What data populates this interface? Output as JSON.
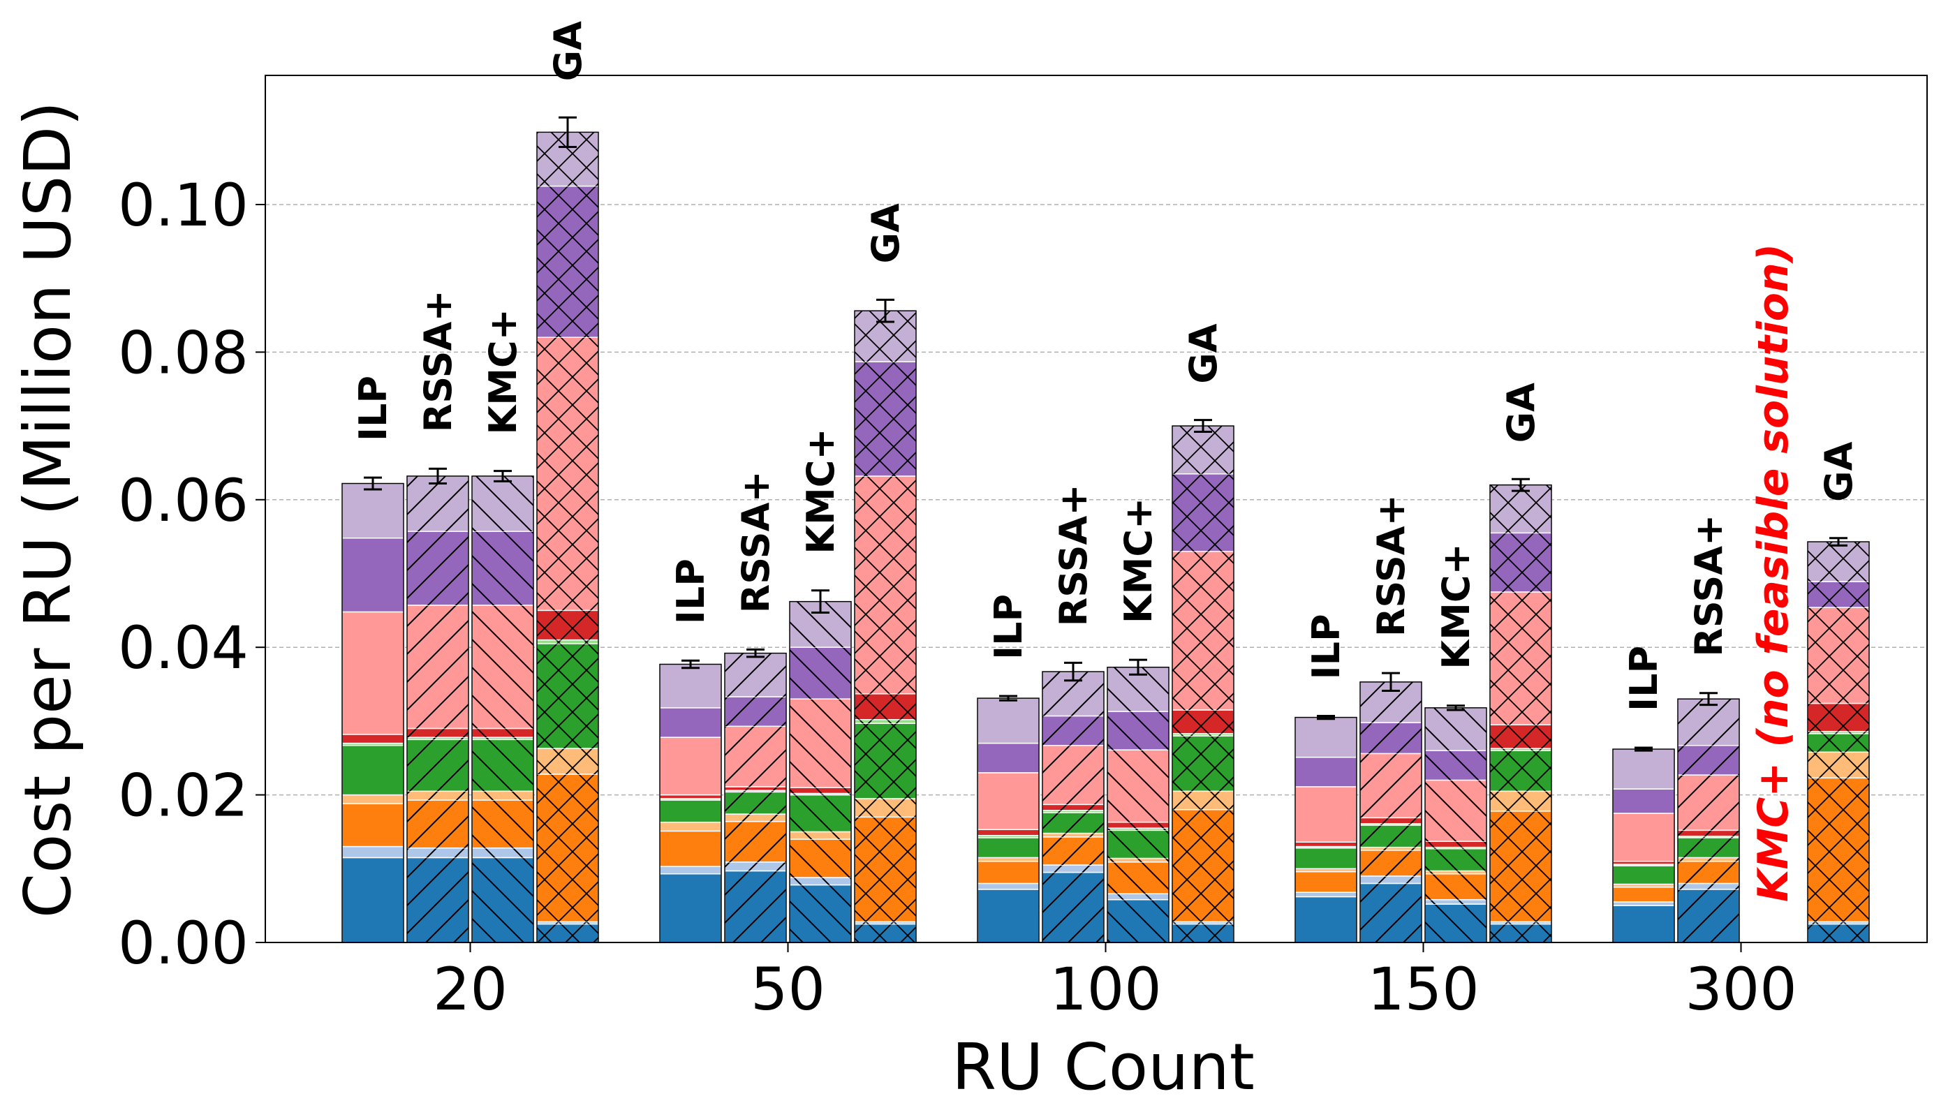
{
  "chart_data": {
    "type": "bar",
    "stacked": true,
    "title": "",
    "xlabel": "RU Count",
    "ylabel": "Cost per RU (Million USD)",
    "ylim": [
      0,
      0.1175
    ],
    "yticks": [
      "0.00",
      "0.02",
      "0.04",
      "0.06",
      "0.08",
      "0.10"
    ],
    "grid": "horizontal dashed",
    "categories": [
      "20",
      "50",
      "100",
      "150",
      "300"
    ],
    "algorithms": [
      "ILP",
      "RSSA+",
      "KMC+",
      "GA"
    ],
    "segment_colors": [
      "#1f77b4",
      "#aec7e8",
      "#ff7f0e",
      "#ffbb78",
      "#2ca02c",
      "#98df8a",
      "#d62728",
      "#ff9896",
      "#9467bd",
      "#c5b0d5"
    ],
    "algorithm_hatch": {
      "ILP": "none",
      "RSSA+": "diagonal",
      "KMC+": "backdiagonal",
      "GA": "cross"
    },
    "bars": [
      {
        "category": "20",
        "algorithm": "ILP",
        "label": "ILP",
        "total": 0.0622,
        "err": 0.0008,
        "segments": [
          0.0115,
          0.0015,
          0.0058,
          0.0012,
          0.0067,
          0.0003,
          0.0012,
          0.0166,
          0.01,
          0.0074
        ]
      },
      {
        "category": "20",
        "algorithm": "RSSA+",
        "label": "RSSA+",
        "total": 0.0632,
        "err": 0.001,
        "segments": [
          0.0115,
          0.0013,
          0.0065,
          0.0012,
          0.007,
          0.0003,
          0.0012,
          0.0167,
          0.01,
          0.0075
        ]
      },
      {
        "category": "20",
        "algorithm": "KMC+",
        "label": "KMC+",
        "total": 0.0632,
        "err": 0.0007,
        "segments": [
          0.0115,
          0.0013,
          0.0065,
          0.0012,
          0.007,
          0.0003,
          0.0012,
          0.0167,
          0.01,
          0.0075
        ]
      },
      {
        "category": "20",
        "algorithm": "GA",
        "label": "GA",
        "total": 0.1098,
        "err": 0.002,
        "segments": [
          0.0025,
          0.0003,
          0.02,
          0.0035,
          0.0142,
          0.0005,
          0.004,
          0.037,
          0.0205,
          0.0073
        ]
      },
      {
        "category": "50",
        "algorithm": "ILP",
        "label": "ILP",
        "total": 0.0377,
        "err": 0.0005,
        "segments": [
          0.0093,
          0.001,
          0.0048,
          0.0012,
          0.003,
          0.0002,
          0.0005,
          0.0078,
          0.004,
          0.0059
        ]
      },
      {
        "category": "50",
        "algorithm": "RSSA+",
        "label": "RSSA+",
        "total": 0.0392,
        "err": 0.0005,
        "segments": [
          0.0097,
          0.0012,
          0.0055,
          0.001,
          0.003,
          0.0002,
          0.0005,
          0.0082,
          0.004,
          0.0059
        ]
      },
      {
        "category": "50",
        "algorithm": "KMC+",
        "label": "KMC+",
        "total": 0.0462,
        "err": 0.0015,
        "segments": [
          0.0078,
          0.001,
          0.0052,
          0.001,
          0.005,
          0.0002,
          0.0008,
          0.012,
          0.007,
          0.0062
        ]
      },
      {
        "category": "50",
        "algorithm": "GA",
        "label": "GA",
        "total": 0.0856,
        "err": 0.0015,
        "segments": [
          0.0025,
          0.0003,
          0.0142,
          0.0025,
          0.0102,
          0.0005,
          0.0035,
          0.0295,
          0.0155,
          0.0069
        ]
      },
      {
        "category": "100",
        "algorithm": "ILP",
        "label": "ILP",
        "total": 0.0331,
        "err": 0.0003,
        "segments": [
          0.0072,
          0.0008,
          0.003,
          0.0005,
          0.0027,
          0.0003,
          0.0008,
          0.0077,
          0.004,
          0.0061
        ]
      },
      {
        "category": "100",
        "algorithm": "RSSA+",
        "label": "RSSA+",
        "total": 0.0367,
        "err": 0.0012,
        "segments": [
          0.0095,
          0.001,
          0.0038,
          0.0005,
          0.0028,
          0.0003,
          0.0008,
          0.008,
          0.004,
          0.006
        ]
      },
      {
        "category": "100",
        "algorithm": "KMC+",
        "label": "KMC+",
        "total": 0.0373,
        "err": 0.001,
        "segments": [
          0.0058,
          0.0008,
          0.0043,
          0.0005,
          0.0038,
          0.0003,
          0.0008,
          0.0098,
          0.0052,
          0.006
        ]
      },
      {
        "category": "100",
        "algorithm": "GA",
        "label": "GA",
        "total": 0.07,
        "err": 0.0008,
        "segments": [
          0.0025,
          0.0003,
          0.0152,
          0.0025,
          0.0075,
          0.0003,
          0.0032,
          0.0215,
          0.0105,
          0.0065
        ]
      },
      {
        "category": "150",
        "algorithm": "ILP",
        "label": "ILP",
        "total": 0.0305,
        "err": 0.0002,
        "segments": [
          0.0062,
          0.0006,
          0.0028,
          0.0004,
          0.0028,
          0.0002,
          0.0006,
          0.0075,
          0.004,
          0.0054
        ]
      },
      {
        "category": "150",
        "algorithm": "RSSA+",
        "label": "RSSA+",
        "total": 0.0353,
        "err": 0.0012,
        "segments": [
          0.008,
          0.001,
          0.0035,
          0.0004,
          0.003,
          0.0002,
          0.0008,
          0.0087,
          0.0042,
          0.0055
        ]
      },
      {
        "category": "150",
        "algorithm": "KMC+",
        "label": "KMC+",
        "total": 0.0318,
        "err": 0.0003,
        "segments": [
          0.0052,
          0.0006,
          0.0035,
          0.0004,
          0.003,
          0.0002,
          0.0008,
          0.0083,
          0.004,
          0.0058
        ]
      },
      {
        "category": "150",
        "algorithm": "GA",
        "label": "GA",
        "total": 0.062,
        "err": 0.0008,
        "segments": [
          0.0025,
          0.0003,
          0.015,
          0.0027,
          0.0055,
          0.0003,
          0.0032,
          0.018,
          0.008,
          0.0065
        ]
      },
      {
        "category": "300",
        "algorithm": "ILP",
        "label": "ILP",
        "total": 0.0262,
        "err": 0.0002,
        "segments": [
          0.005,
          0.0005,
          0.002,
          0.0004,
          0.0025,
          0.0002,
          0.0004,
          0.0065,
          0.0033,
          0.0054
        ]
      },
      {
        "category": "300",
        "algorithm": "RSSA+",
        "label": "RSSA+",
        "total": 0.033,
        "err": 0.0008,
        "segments": [
          0.0072,
          0.0008,
          0.003,
          0.0005,
          0.0027,
          0.0002,
          0.0008,
          0.0075,
          0.004,
          0.0063
        ]
      },
      {
        "category": "300",
        "algorithm": "KMC+",
        "label": "",
        "total": null,
        "err": null,
        "segments": []
      },
      {
        "category": "300",
        "algorithm": "GA",
        "label": "GA",
        "total": 0.0543,
        "err": 0.0005,
        "segments": [
          0.0025,
          0.0003,
          0.0195,
          0.0035,
          0.0025,
          0.0003,
          0.0038,
          0.013,
          0.0035,
          0.0054
        ]
      }
    ],
    "annotations": [
      {
        "text": "KMC+ (no feasible solution)",
        "category": "300",
        "algorithm": "KMC+",
        "color": "#ff0000",
        "rotation": -90
      }
    ]
  }
}
